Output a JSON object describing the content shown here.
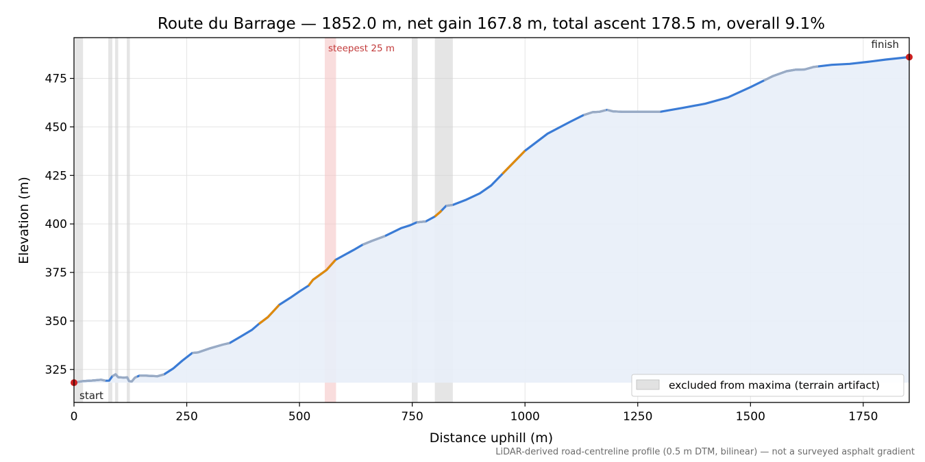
{
  "chart_data": {
    "type": "line",
    "title": "Route du Barrage — 1852.0 m, net gain 167.8 m, total ascent 178.5 m, overall 9.1%",
    "xlabel": "Distance uphill (m)",
    "ylabel": "Elevation (m)",
    "xlim": [
      0,
      1852
    ],
    "ylim": [
      308,
      496
    ],
    "x_ticks": [
      0,
      250,
      500,
      750,
      1000,
      1250,
      1500,
      1750
    ],
    "y_ticks": [
      325,
      350,
      375,
      400,
      425,
      450,
      475
    ],
    "grid": true,
    "legend_position": "bottom-right",
    "legend": [
      "excluded from maxima (terrain artifact)"
    ],
    "fill_base": 318.2,
    "profile": [
      [
        0,
        318.2
      ],
      [
        20,
        319
      ],
      [
        40,
        319.3
      ],
      [
        60,
        319.7
      ],
      [
        70,
        319.2
      ],
      [
        78,
        319.2
      ],
      [
        85,
        321.5
      ],
      [
        92,
        322.5
      ],
      [
        98,
        321
      ],
      [
        110,
        320.8
      ],
      [
        118,
        320.9
      ],
      [
        122,
        319
      ],
      [
        128,
        318.8
      ],
      [
        135,
        320.8
      ],
      [
        145,
        321.8
      ],
      [
        160,
        321.8
      ],
      [
        185,
        321.5
      ],
      [
        200,
        322.5
      ],
      [
        220,
        325.5
      ],
      [
        240,
        329.5
      ],
      [
        262,
        333.5
      ],
      [
        275,
        333.8
      ],
      [
        300,
        335.8
      ],
      [
        330,
        337.8
      ],
      [
        345,
        338.6
      ],
      [
        370,
        342
      ],
      [
        395,
        345.5
      ],
      [
        410,
        348.5
      ],
      [
        430,
        352
      ],
      [
        455,
        358.3
      ],
      [
        480,
        362
      ],
      [
        500,
        365.2
      ],
      [
        520,
        368.2
      ],
      [
        530,
        371.2
      ],
      [
        560,
        376.3
      ],
      [
        580,
        381.5
      ],
      [
        620,
        386.6
      ],
      [
        640,
        389.3
      ],
      [
        660,
        391.2
      ],
      [
        690,
        393.8
      ],
      [
        725,
        397.8
      ],
      [
        745,
        399.3
      ],
      [
        760,
        400.8
      ],
      [
        780,
        401.3
      ],
      [
        800,
        403.8
      ],
      [
        812,
        406.2
      ],
      [
        825,
        409.3
      ],
      [
        840,
        409.8
      ],
      [
        870,
        412.5
      ],
      [
        900,
        415.8
      ],
      [
        925,
        419.8
      ],
      [
        950,
        425.8
      ],
      [
        1000,
        437.7
      ],
      [
        1050,
        446.5
      ],
      [
        1100,
        452.6
      ],
      [
        1130,
        456.1
      ],
      [
        1150,
        457.6
      ],
      [
        1165,
        457.8
      ],
      [
        1182,
        458.8
      ],
      [
        1195,
        458
      ],
      [
        1215,
        457.8
      ],
      [
        1300,
        457.8
      ],
      [
        1350,
        459.8
      ],
      [
        1400,
        462
      ],
      [
        1450,
        465.2
      ],
      [
        1500,
        470.5
      ],
      [
        1550,
        476.2
      ],
      [
        1580,
        478.7
      ],
      [
        1600,
        479.5
      ],
      [
        1620,
        479.6
      ],
      [
        1640,
        480.9
      ],
      [
        1680,
        482
      ],
      [
        1720,
        482.5
      ],
      [
        1760,
        483.5
      ],
      [
        1800,
        484.7
      ],
      [
        1852,
        486
      ]
    ],
    "segments": [
      {
        "grade": "orange",
        "from": 410,
        "to": 455
      },
      {
        "grade": "orange",
        "from": 520,
        "to": 580
      },
      {
        "grade": "orange",
        "from": 800,
        "to": 815
      },
      {
        "grade": "orange",
        "from": 950,
        "to": 1000
      },
      {
        "grade": "gray",
        "from": 0,
        "to": 70
      },
      {
        "grade": "gray",
        "from": 85,
        "to": 140
      },
      {
        "grade": "gray",
        "from": 145,
        "to": 200
      },
      {
        "grade": "gray",
        "from": 262,
        "to": 345
      },
      {
        "grade": "gray",
        "from": 640,
        "to": 690
      },
      {
        "grade": "gray",
        "from": 760,
        "to": 780
      },
      {
        "grade": "gray",
        "from": 825,
        "to": 840
      },
      {
        "grade": "gray",
        "from": 1130,
        "to": 1180
      },
      {
        "grade": "gray",
        "from": 1182,
        "to": 1300
      },
      {
        "grade": "gray",
        "from": 1530,
        "to": 1650
      }
    ],
    "excluded_spans": [
      [
        2,
        20
      ],
      [
        76,
        85
      ],
      [
        91,
        98
      ],
      [
        117,
        124
      ],
      [
        750,
        762
      ],
      [
        800,
        840
      ]
    ],
    "steepest_span": [
      556,
      581
    ],
    "annotations": {
      "steepest": "steepest 25 m",
      "start": "start",
      "finish": "finish"
    },
    "endpoints": [
      [
        0,
        318.2
      ],
      [
        1852,
        486
      ]
    ],
    "footnote": "LiDAR-derived road-centreline profile (0.5 m DTM, bilinear) — not a surveyed asphalt gradient",
    "colors": {
      "line": "#3a7bd5",
      "gentle": "#9aabc4",
      "steep": "#e08a0c",
      "fill": "#e8eef8",
      "excluded": "#cfcfcf",
      "steepest_band": "#f5c6c6",
      "endpoint": "#cc1f1f",
      "grid": "#e4e4e4"
    }
  }
}
